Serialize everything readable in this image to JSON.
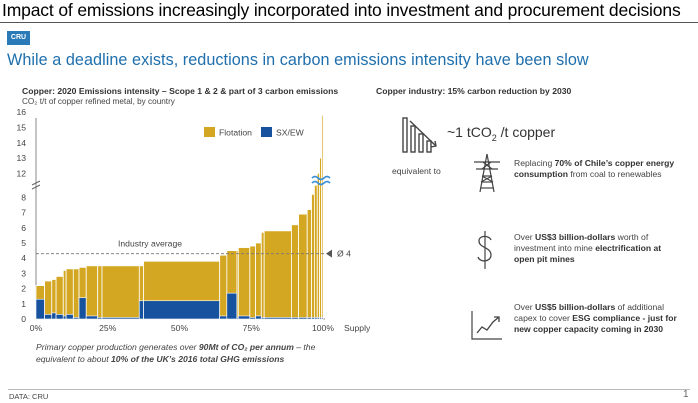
{
  "page_title": "Impact of emissions increasingly incorporated into investment and procurement decisions",
  "logo_text": "CRU",
  "headline": "While a deadline exists, reductions in carbon emissions intensity have been slow",
  "left_title": "Copper: 2020 Emissions intensity – Scope 1 & 2 & part of 3 carbon emissions",
  "left_subtitle": "CO₂ t/t of copper refined metal, by country",
  "right_title": "Copper industry: 15% carbon reduction by 2030",
  "target": {
    "prefix": "~1 tCO",
    "sub": "2",
    "suffix": " /t copper"
  },
  "equivalent_label": "equivalent to",
  "facts": [
    {
      "icon": "power-pylon-icon",
      "pre": "Replacing ",
      "bold": "70% of Chile’s copper energy consumption",
      "post": " from coal to renewables"
    },
    {
      "icon": "dollar-icon",
      "pre": "Over ",
      "bold": "US$3 billion-dollars",
      "post": " worth of investment into mine ",
      "bold2": "electrification at open pit mines",
      "post2": ""
    },
    {
      "icon": "chart-line-icon",
      "pre": "Over ",
      "bold": "US$5 billion-dollars",
      "post": " of additional capex to cover ",
      "bold2": "ESG compliance - just for new copper capacity coming in  2030",
      "post2": ""
    }
  ],
  "footnote": {
    "pre": "Primary copper production generates over ",
    "bold": "90Mt of CO₂ per annum",
    "mid": " – the equivalent to about ",
    "bold2": "10% of the UK’s 2016 total GHG emissions",
    "post": ""
  },
  "source": "DATA: CRU",
  "page_number": "1",
  "colors": {
    "flotation": "#d4a722",
    "sxew": "#17529f",
    "headline": "#1f6fad",
    "logo": "#2a7ab8"
  },
  "chart_data": {
    "type": "bar",
    "subtype": "cost-curve",
    "title": "Copper: 2020 Emissions intensity – Scope 1 & 2 & part of 3 carbon emissions",
    "ylabel": "CO₂ t/t of copper refined metal, by country",
    "xlabel": "Supply",
    "ylim": [
      0,
      16
    ],
    "axis_break": [
      8.8,
      11.5
    ],
    "y_ticks": [
      0,
      1,
      2,
      3,
      4,
      5,
      6,
      7,
      8,
      12,
      13,
      14,
      15,
      16
    ],
    "x_ticks": [
      "0%",
      "25%",
      "50%",
      "75%",
      "100%"
    ],
    "legend": [
      "Flotation",
      "SX/EW"
    ],
    "legend_position": "top-right",
    "reference_line": {
      "label": "Industry average",
      "value": 4.3
    },
    "average_marker": "Ø 4",
    "bars": [
      {
        "start": 0.0,
        "end": 3.0,
        "total": 2.2,
        "sxew": 1.3
      },
      {
        "start": 3.0,
        "end": 5.5,
        "total": 2.5,
        "sxew": 0.3
      },
      {
        "start": 5.5,
        "end": 7.0,
        "total": 2.6,
        "sxew": 0.4
      },
      {
        "start": 7.0,
        "end": 9.5,
        "total": 2.8,
        "sxew": 0.3
      },
      {
        "start": 9.5,
        "end": 10.5,
        "total": 3.2,
        "sxew": 0.2
      },
      {
        "start": 10.5,
        "end": 13.0,
        "total": 3.3,
        "sxew": 0.3
      },
      {
        "start": 13.0,
        "end": 15.0,
        "total": 3.3,
        "sxew": 0.1
      },
      {
        "start": 15.0,
        "end": 17.5,
        "total": 3.4,
        "sxew": 1.4
      },
      {
        "start": 17.5,
        "end": 21.5,
        "total": 3.5,
        "sxew": 0.2
      },
      {
        "start": 21.5,
        "end": 23.0,
        "total": 3.5,
        "sxew": 0.1
      },
      {
        "start": 23.0,
        "end": 36.0,
        "total": 3.5,
        "sxew": 0.1
      },
      {
        "start": 36.0,
        "end": 37.5,
        "total": 3.5,
        "sxew": 1.2
      },
      {
        "start": 37.5,
        "end": 64.0,
        "total": 3.8,
        "sxew": 1.2
      },
      {
        "start": 64.0,
        "end": 66.5,
        "total": 4.2,
        "sxew": 0.2
      },
      {
        "start": 66.5,
        "end": 70.0,
        "total": 4.5,
        "sxew": 1.7
      },
      {
        "start": 70.0,
        "end": 70.5,
        "total": 4.5,
        "sxew": 0.1
      },
      {
        "start": 70.5,
        "end": 74.5,
        "total": 4.7,
        "sxew": 0.2
      },
      {
        "start": 74.5,
        "end": 76.5,
        "total": 4.8,
        "sxew": 0.1
      },
      {
        "start": 76.5,
        "end": 78.5,
        "total": 5.0,
        "sxew": 0.2
      },
      {
        "start": 78.5,
        "end": 79.5,
        "total": 5.7,
        "sxew": 0.1
      },
      {
        "start": 79.5,
        "end": 89.0,
        "total": 5.8,
        "sxew": 0.1
      },
      {
        "start": 89.0,
        "end": 91.5,
        "total": 6.2,
        "sxew": 0.1
      },
      {
        "start": 91.5,
        "end": 94.5,
        "total": 6.9,
        "sxew": 0.1
      },
      {
        "start": 94.5,
        "end": 96.0,
        "total": 7.2,
        "sxew": 0.1
      },
      {
        "start": 96.0,
        "end": 97.0,
        "total": 8.2,
        "sxew": 0.1
      },
      {
        "start": 97.0,
        "end": 98.0,
        "total": 8.8,
        "sxew": 0.1
      },
      {
        "start": 98.0,
        "end": 98.8,
        "total": 12.0,
        "sxew": 0.1
      },
      {
        "start": 98.8,
        "end": 99.5,
        "total": 13.0,
        "sxew": 0.1
      },
      {
        "start": 99.5,
        "end": 100.0,
        "total": 15.8,
        "sxew": 0.1
      }
    ]
  }
}
